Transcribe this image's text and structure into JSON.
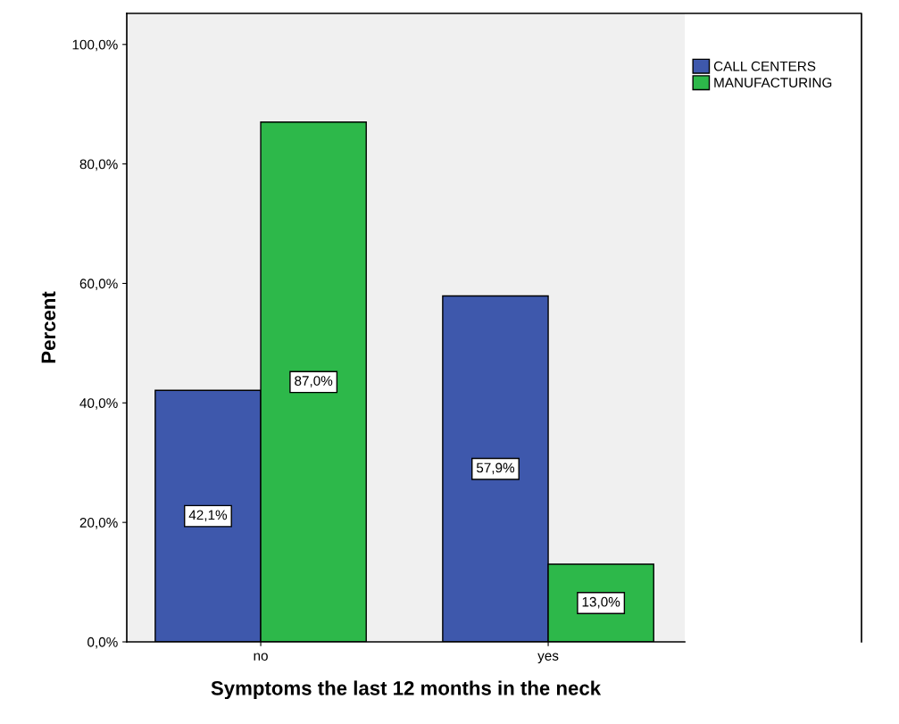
{
  "chart_data": {
    "type": "bar",
    "xlabel": "Symptoms the last 12 months in the neck",
    "ylabel": "Percent",
    "categories": [
      "no",
      "yes"
    ],
    "series": [
      {
        "name": "CALL CENTERS",
        "color": "#3e58ac",
        "values": [
          42.1,
          57.9
        ],
        "value_labels": [
          "42,1%",
          "57,9%"
        ]
      },
      {
        "name": "MANUFACTURING",
        "color": "#2db84a",
        "values": [
          87.0,
          13.0
        ],
        "value_labels": [
          "87,0%",
          "13,0%"
        ]
      }
    ],
    "ylim": [
      0,
      105.2
    ],
    "yticks": [
      {
        "value": 0,
        "label": "0,0%"
      },
      {
        "value": 20,
        "label": "20,0%"
      },
      {
        "value": 40,
        "label": "40,0%"
      },
      {
        "value": 60,
        "label": "60,0%"
      },
      {
        "value": 80,
        "label": "80,0%"
      },
      {
        "value": 100,
        "label": "100,0%"
      }
    ],
    "grid": false,
    "legend": "top right"
  }
}
